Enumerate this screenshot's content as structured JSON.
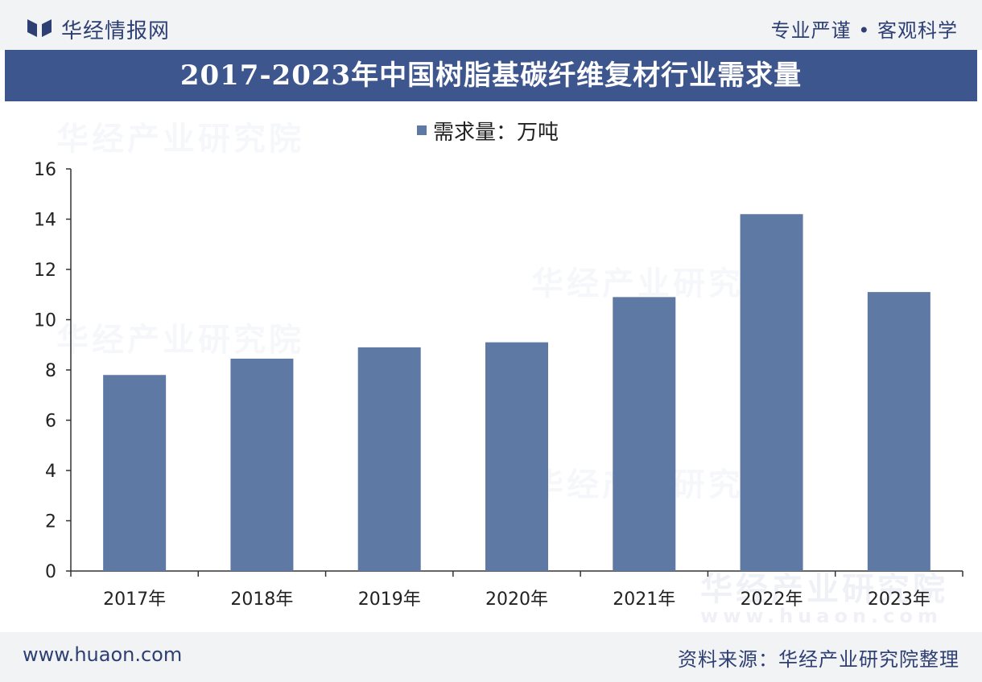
{
  "header": {
    "brand": "华经情报网",
    "slogan": "专业严谨 • 客观科学"
  },
  "title": "2017-2023年中国树脂基碳纤维复材行业需求量",
  "watermark": {
    "name": "华经产业研究院",
    "url": "www.huaon.com"
  },
  "footer": {
    "site": "www.huaon.com",
    "source": "资料来源：华经产业研究院整理"
  },
  "colors": {
    "bar": "#5f79a5",
    "header_band": "#3e568e",
    "brand_text": "#2e3f73"
  },
  "chart_data": {
    "type": "bar",
    "title": "2017-2023年中国树脂基碳纤维复材行业需求量",
    "legend": "需求量：万吨",
    "categories": [
      "2017年",
      "2018年",
      "2019年",
      "2020年",
      "2021年",
      "2022年",
      "2023年"
    ],
    "series": [
      {
        "name": "需求量：万吨",
        "values": [
          7.8,
          8.45,
          8.9,
          9.1,
          10.9,
          14.2,
          11.1
        ]
      }
    ],
    "ylim": [
      0,
      16
    ],
    "yticks": [
      0,
      2,
      4,
      6,
      8,
      10,
      12,
      14,
      16
    ],
    "grid": false,
    "legend_position": "top-center"
  }
}
